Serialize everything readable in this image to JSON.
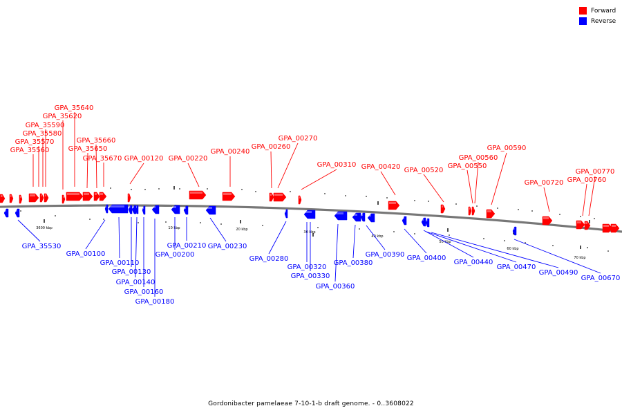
{
  "colors": {
    "forward": "#ff0000",
    "reverse": "#0000ff",
    "backbone": "#777777",
    "tick": "#000000"
  },
  "legend": [
    {
      "label": "Forward",
      "color": "#ff0000"
    },
    {
      "label": "Reverse",
      "color": "#0000ff"
    }
  ],
  "caption": "Gordonibacter pamelaeae 7-10-1-b draft genome. - 0..3608022",
  "scale_labels": [
    "3600 kbp",
    "10 kbp",
    "20 kbp",
    "30 kbp",
    "40 kbp",
    "50 kbp",
    "60 kbp",
    "70 kbp"
  ],
  "forward_labels": [
    "GPA_35640",
    "GPA_35620",
    "GPA_35590",
    "GPA_35580",
    "GPA_35570",
    "GPA_35560",
    "GPA_35660",
    "GPA_35650",
    "GPA_35670",
    "GPA_00120",
    "GPA_00220",
    "GPA_00240",
    "GPA_00260",
    "GPA_00270",
    "GPA_00310",
    "GPA_00420",
    "GPA_00520",
    "GPA_00590",
    "GPA_00560",
    "GPA_00550",
    "GPA_00720",
    "GPA_00770",
    "GPA_00760"
  ],
  "reverse_labels": [
    "GPA_35530",
    "GPA_00100",
    "GPA_00110",
    "GPA_00130",
    "GPA_00140",
    "GPA_00160",
    "GPA_00180",
    "GPA_00210",
    "GPA_00200",
    "GPA_00230",
    "GPA_00280",
    "GPA_00320",
    "GPA_00330",
    "GPA_00360",
    "GPA_00380",
    "GPA_00390",
    "GPA_00400",
    "GPA_00440",
    "GPA_00470",
    "GPA_00490",
    "GPA_00670"
  ]
}
